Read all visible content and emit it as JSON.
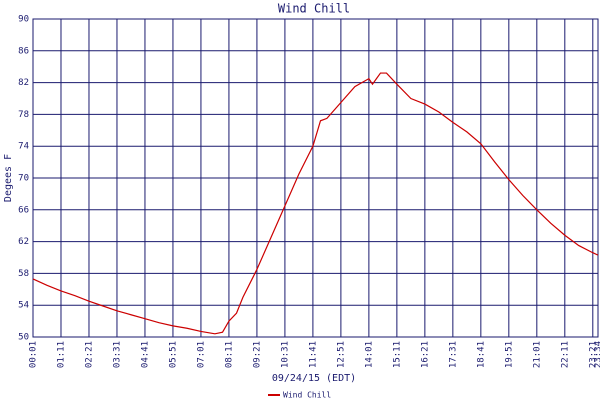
{
  "chart_data": {
    "type": "line",
    "title": "Wind Chill",
    "y_label": "Degees F",
    "x_label": "09/24/15 (EDT)",
    "ylim": [
      50,
      90
    ],
    "yticks": [
      50,
      54,
      58,
      62,
      66,
      70,
      74,
      78,
      82,
      86,
      90
    ],
    "xlim": [
      "00:01",
      "23:34"
    ],
    "xticks": [
      "00:01",
      "01:11",
      "02:21",
      "03:31",
      "04:41",
      "05:51",
      "07:01",
      "08:11",
      "09:21",
      "10:31",
      "11:41",
      "12:51",
      "14:01",
      "15:11",
      "16:21",
      "17:31",
      "18:41",
      "19:51",
      "21:01",
      "22:11",
      "23:21",
      "23:34"
    ],
    "grid": true,
    "legend": "bottom",
    "x": [
      "00:01",
      "00:36",
      "01:11",
      "01:46",
      "02:21",
      "02:56",
      "03:31",
      "04:06",
      "04:41",
      "05:16",
      "05:51",
      "06:26",
      "07:01",
      "07:36",
      "07:55",
      "08:11",
      "08:30",
      "08:46",
      "09:21",
      "09:56",
      "10:31",
      "11:06",
      "11:41",
      "12:00",
      "12:16",
      "12:51",
      "13:26",
      "14:01",
      "14:10",
      "14:20",
      "14:30",
      "14:45",
      "15:11",
      "15:46",
      "16:21",
      "16:56",
      "17:31",
      "18:06",
      "18:41",
      "19:16",
      "19:51",
      "20:26",
      "21:01",
      "21:36",
      "22:11",
      "22:46",
      "23:21",
      "23:34"
    ],
    "series": [
      {
        "name": "Wind Chill",
        "color": "#cc0000",
        "values": [
          57.3,
          56.5,
          55.8,
          55.2,
          54.5,
          53.9,
          53.3,
          52.8,
          52.3,
          51.8,
          51.4,
          51.1,
          50.7,
          50.4,
          50.6,
          52.0,
          53.0,
          55.0,
          58.5,
          62.5,
          66.5,
          70.5,
          74.0,
          77.2,
          77.5,
          79.5,
          81.5,
          82.5,
          81.8,
          82.5,
          83.2,
          83.2,
          81.8,
          80.0,
          79.3,
          78.3,
          77.0,
          75.8,
          74.3,
          72.0,
          69.8,
          67.8,
          66.0,
          64.3,
          62.8,
          61.5,
          60.6,
          60.3
        ]
      }
    ]
  }
}
